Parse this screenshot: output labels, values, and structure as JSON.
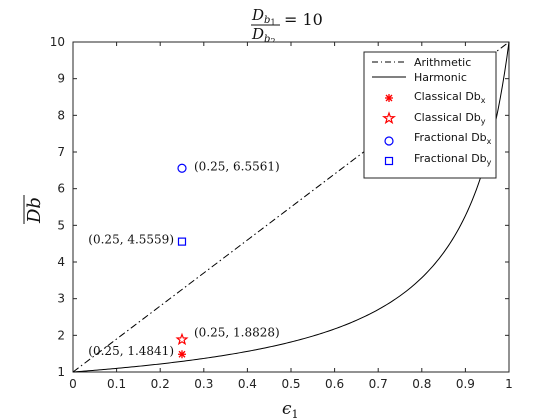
{
  "chart_data": {
    "type": "line",
    "title": {
      "main": "D",
      "num_sub": "b",
      "num_subsub": "1",
      "den_sub": "b",
      "den_subsub": "2",
      "rhs": "= 10"
    },
    "xlabel": {
      "main": "ϵ",
      "sub": "1"
    },
    "ylabel": {
      "main": "Db"
    },
    "xlim": [
      0,
      1
    ],
    "ylim": [
      1,
      10
    ],
    "xticks": [
      "0",
      "0.1",
      "0.2",
      "0.3",
      "0.4",
      "0.5",
      "0.6",
      "0.7",
      "0.8",
      "0.9",
      "1"
    ],
    "yticks": [
      "1",
      "2",
      "3",
      "4",
      "5",
      "6",
      "7",
      "8",
      "9",
      "10"
    ],
    "ratio": 10,
    "series": [
      {
        "name": "Arithmetic",
        "kind": "line",
        "style": "dash-dot",
        "color": "#000000",
        "formula": "1 + 9*x"
      },
      {
        "name": "Harmonic",
        "kind": "line",
        "style": "solid",
        "color": "#000000",
        "formula": "10 / (10 - 9*x)"
      }
    ],
    "legend_position": "top-right",
    "legend": [
      {
        "label": "Arithmetic",
        "sub": ""
      },
      {
        "label": "Harmonic",
        "sub": ""
      },
      {
        "label": "Classical Db",
        "sub": "x"
      },
      {
        "label": "Classical Db",
        "sub": "y"
      },
      {
        "label": "Fractional Db",
        "sub": "x"
      },
      {
        "label": "Fractional Db",
        "sub": "y"
      }
    ],
    "points": [
      {
        "series": "Classical Db_x",
        "marker": "asterisk",
        "color": "#ff0000",
        "x": 0.25,
        "y": 1.4841,
        "label": "(0.25, 1.4841)",
        "label_side": "left"
      },
      {
        "series": "Classical Db_y",
        "marker": "pentagram",
        "color": "#ff0000",
        "x": 0.25,
        "y": 1.8828,
        "label": "(0.25, 1.8828)",
        "label_side": "right"
      },
      {
        "series": "Fractional Db_x",
        "marker": "circle",
        "color": "#0000ff",
        "x": 0.25,
        "y": 6.5561,
        "label": "(0.25, 6.5561)",
        "label_side": "right"
      },
      {
        "series": "Fractional Db_y",
        "marker": "square",
        "color": "#0000ff",
        "x": 0.25,
        "y": 4.5559,
        "label": "(0.25, 4.5559)",
        "label_side": "left"
      }
    ]
  }
}
